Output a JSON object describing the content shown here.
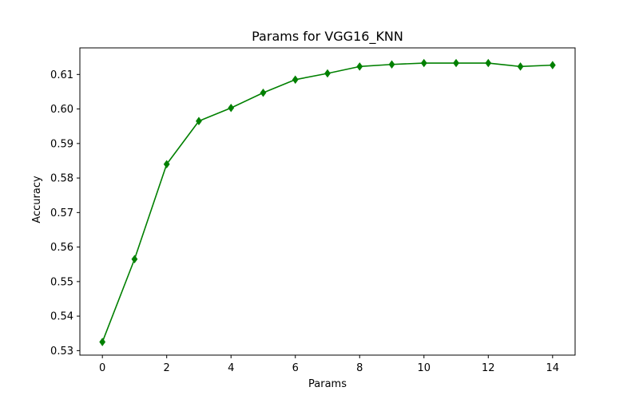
{
  "chart_data": {
    "type": "line",
    "title": "Params for VGG16_KNN",
    "xlabel": "Params",
    "ylabel": "Accuracy",
    "xlim": [
      -0.7,
      14.7
    ],
    "ylim": [
      0.5287,
      0.6177
    ],
    "xticks": [
      0,
      2,
      4,
      6,
      8,
      10,
      12,
      14
    ],
    "xtick_labels": [
      "0",
      "2",
      "4",
      "6",
      "8",
      "10",
      "12",
      "14"
    ],
    "yticks": [
      0.53,
      0.54,
      0.55,
      0.56,
      0.57,
      0.58,
      0.59,
      0.6,
      0.61
    ],
    "ytick_labels": [
      "0.53",
      "0.54",
      "0.55",
      "0.56",
      "0.57",
      "0.58",
      "0.59",
      "0.60",
      "0.61"
    ],
    "grid": false,
    "series": [
      {
        "color": "#008000",
        "marker": "diamond",
        "x": [
          0,
          1,
          2,
          3,
          4,
          5,
          6,
          7,
          8,
          9,
          10,
          11,
          12,
          13,
          14
        ],
        "y": [
          0.5325,
          0.5565,
          0.584,
          0.5965,
          0.6003,
          0.6047,
          0.6085,
          0.6103,
          0.6123,
          0.6129,
          0.6133,
          0.6133,
          0.6133,
          0.6123,
          0.6127
        ]
      }
    ]
  }
}
